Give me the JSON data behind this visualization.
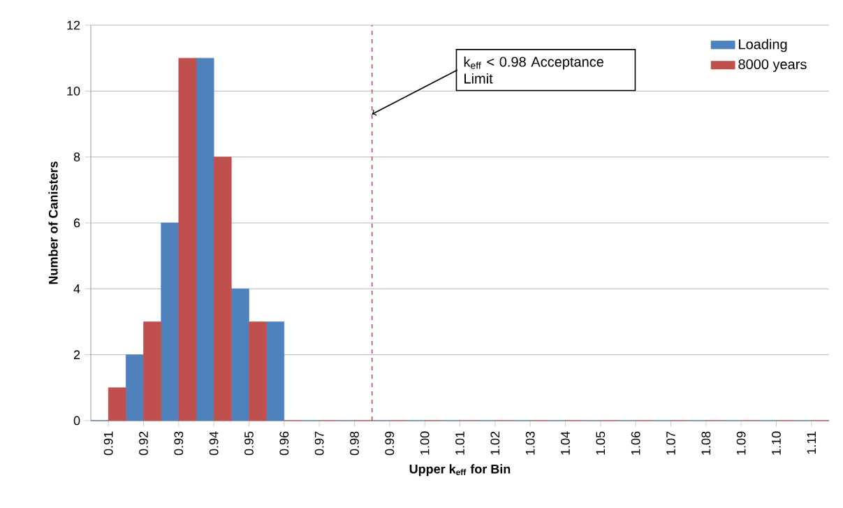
{
  "chart_data": {
    "type": "bar",
    "xlabel": "Upper k$_{eff}$ for Bin",
    "ylabel": "Number of Canisters",
    "x": [
      0.91,
      0.92,
      0.93,
      0.94,
      0.95,
      0.96,
      0.97,
      0.98,
      0.99,
      1.0,
      1.01,
      1.02,
      1.03,
      1.04,
      1.05,
      1.06,
      1.07,
      1.08,
      1.09,
      1.1,
      1.11
    ],
    "series": [
      {
        "name": "Loading",
        "color": "#4f81bd",
        "values": [
          0,
          2,
          6,
          11,
          4,
          3,
          0,
          0,
          0,
          0,
          0,
          0,
          0,
          0,
          0,
          0,
          0,
          0,
          0,
          0,
          0
        ]
      },
      {
        "name": "8000 years",
        "color": "#c0504d",
        "values": [
          1,
          3,
          11,
          8,
          3,
          0,
          0,
          0,
          0,
          0,
          0,
          0,
          0,
          0,
          0,
          0,
          0,
          0,
          0,
          0,
          0
        ]
      }
    ],
    "xlim": [
      0.905,
      1.115
    ],
    "xticks": [
      {
        "value": 0.91,
        "label": "0.91"
      },
      {
        "value": 0.92,
        "label": "0.92"
      },
      {
        "value": 0.93,
        "label": "0.93"
      },
      {
        "value": 0.94,
        "label": "0.94"
      },
      {
        "value": 0.95,
        "label": "0.95"
      },
      {
        "value": 0.96,
        "label": "0.96"
      },
      {
        "value": 0.97,
        "label": "0.97"
      },
      {
        "value": 0.98,
        "label": "0.98"
      },
      {
        "value": 0.99,
        "label": "0.99"
      },
      {
        "value": 1.0,
        "label": "1.00"
      },
      {
        "value": 1.01,
        "label": "1.01"
      },
      {
        "value": 1.02,
        "label": "1.02"
      },
      {
        "value": 1.03,
        "label": "1.03"
      },
      {
        "value": 1.04,
        "label": "1.04"
      },
      {
        "value": 1.05,
        "label": "1.05"
      },
      {
        "value": 1.06,
        "label": "1.06"
      },
      {
        "value": 1.07,
        "label": "1.07"
      },
      {
        "value": 1.08,
        "label": "1.08"
      },
      {
        "value": 1.09,
        "label": "1.09"
      },
      {
        "value": 1.1,
        "label": "1.10"
      },
      {
        "value": 1.11,
        "label": "1.11"
      }
    ],
    "ylim": [
      0,
      12
    ],
    "yticks": [
      0,
      2,
      4,
      6,
      8,
      10,
      12
    ],
    "grid": "y",
    "legend": "top right",
    "ref_lines": [
      {
        "axis": "x",
        "value": 0.985,
        "color": "#c0504d",
        "line_style": "dashed"
      }
    ],
    "annotations": [
      {
        "text": "k$_{eff}$ < 0.98 Acceptance Limit",
        "x": 0.985,
        "y": 9.3
      }
    ]
  }
}
